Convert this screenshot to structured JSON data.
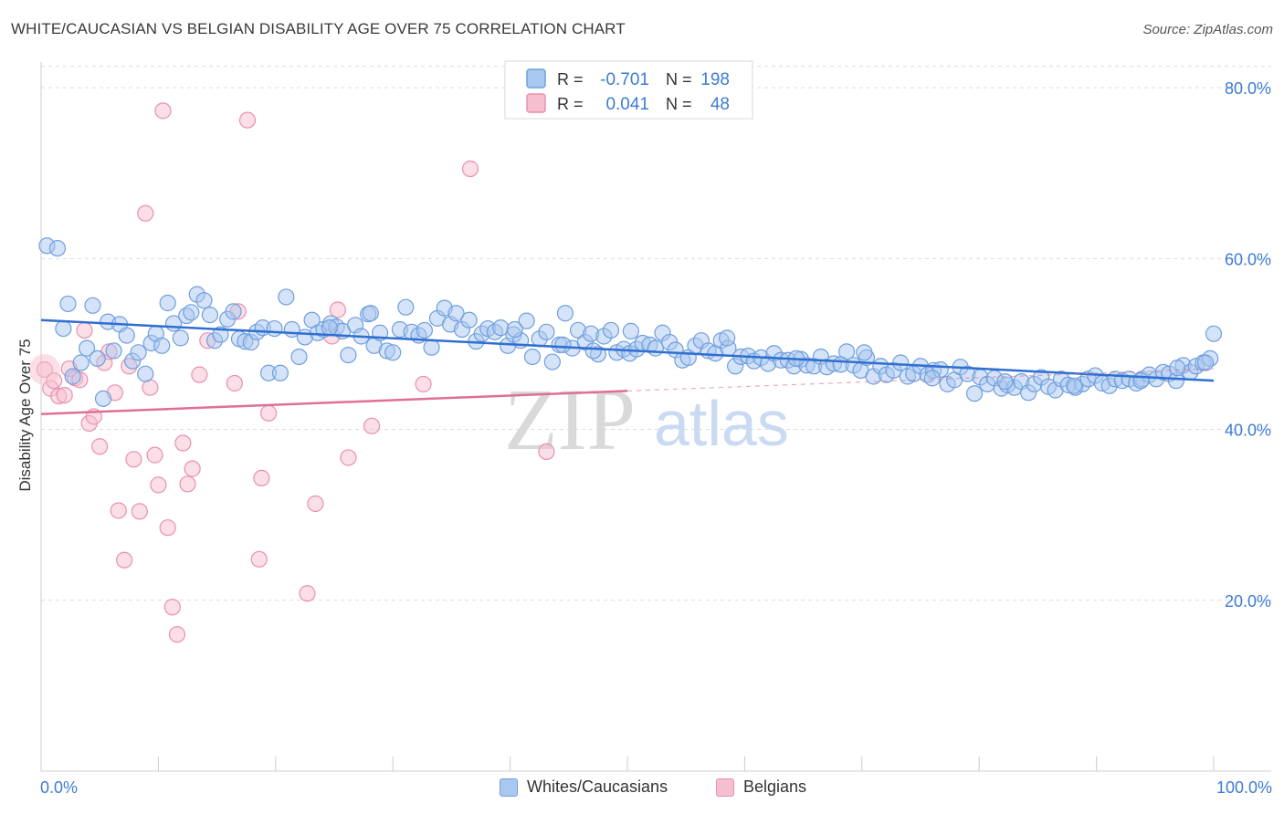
{
  "title": "WHITE/CAUCASIAN VS BELGIAN DISABILITY AGE OVER 75 CORRELATION CHART",
  "source": "Source: ZipAtlas.com",
  "watermark": {
    "zip": "ZIP",
    "atlas": "atlas"
  },
  "colors": {
    "blue_fill": "#a9c8ef",
    "blue_stroke": "#6f9fde",
    "blue_line": "#2e6fd1",
    "pink_fill": "#f6bfd0",
    "pink_stroke": "#ea8fae",
    "pink_line": "#e06e95",
    "tick_label": "#3d7bd6",
    "grid": "#dcdcdc"
  },
  "legend": {
    "rows": [
      {
        "r_label": "R =",
        "r_value": "-0.701",
        "n_label": "N =",
        "n_value": "198",
        "series": "blue"
      },
      {
        "r_label": "R =",
        "r_value": "0.041",
        "n_label": "N =",
        "n_value": "48",
        "series": "pink"
      }
    ]
  },
  "bottom_legend": [
    "Whites/Caucasians",
    "Belgians"
  ],
  "chart_data": {
    "type": "scatter",
    "title": "WHITE/CAUCASIAN VS BELGIAN DISABILITY AGE OVER 75 CORRELATION CHART",
    "xlabel": "",
    "ylabel": "Disability Age Over 75",
    "xlim": [
      0,
      100
    ],
    "ylim": [
      0,
      83
    ],
    "x_tick_labels": [
      "0.0%",
      "100.0%"
    ],
    "y_ticks": [
      20,
      40,
      60,
      80
    ],
    "y_tick_labels": [
      "20.0%",
      "40.0%",
      "60.0%",
      "80.0%"
    ],
    "grid": true,
    "legend_position": "top-center",
    "series": [
      {
        "name": "Whites/Caucasians",
        "color": "#a9c8ef",
        "trend": {
          "x": [
            0,
            100
          ],
          "y": [
            52.8,
            45.7
          ]
        },
        "points": [
          [
            0.5,
            61.5
          ],
          [
            1.4,
            61.2
          ],
          [
            1.9,
            51.8
          ],
          [
            2.3,
            54.7
          ],
          [
            2.7,
            46.2
          ],
          [
            3.4,
            47.8
          ],
          [
            3.9,
            49.5
          ],
          [
            4.4,
            54.5
          ],
          [
            4.8,
            48.3
          ],
          [
            5.3,
            43.6
          ],
          [
            5.7,
            52.6
          ],
          [
            6.2,
            49.2
          ],
          [
            6.7,
            52.3
          ],
          [
            7.3,
            51.0
          ],
          [
            7.8,
            48.0
          ],
          [
            8.3,
            49.0
          ],
          [
            8.9,
            46.5
          ],
          [
            9.4,
            50.1
          ],
          [
            9.8,
            51.2
          ],
          [
            10.3,
            49.8
          ],
          [
            10.8,
            54.8
          ],
          [
            11.3,
            52.4
          ],
          [
            11.9,
            50.7
          ],
          [
            12.4,
            53.3
          ],
          [
            12.8,
            53.7
          ],
          [
            13.3,
            55.8
          ],
          [
            13.9,
            55.1
          ],
          [
            14.4,
            53.4
          ],
          [
            14.8,
            50.4
          ],
          [
            15.3,
            51.1
          ],
          [
            15.9,
            52.9
          ],
          [
            16.4,
            53.8
          ],
          [
            16.9,
            50.6
          ],
          [
            17.4,
            50.3
          ],
          [
            17.9,
            50.2
          ],
          [
            18.4,
            51.4
          ],
          [
            18.9,
            51.9
          ],
          [
            19.4,
            46.6
          ],
          [
            19.9,
            51.8
          ],
          [
            20.4,
            46.6
          ],
          [
            20.9,
            55.5
          ],
          [
            21.4,
            51.7
          ],
          [
            22.0,
            48.5
          ],
          [
            22.5,
            50.8
          ],
          [
            23.1,
            52.8
          ],
          [
            23.6,
            51.3
          ],
          [
            24.1,
            51.7
          ],
          [
            24.7,
            52.4
          ],
          [
            25.2,
            52.0
          ],
          [
            25.7,
            51.5
          ],
          [
            26.2,
            48.7
          ],
          [
            26.8,
            52.2
          ],
          [
            27.3,
            50.9
          ],
          [
            27.9,
            53.5
          ],
          [
            28.4,
            49.8
          ],
          [
            28.9,
            51.3
          ],
          [
            29.5,
            49.2
          ],
          [
            30.0,
            49.0
          ],
          [
            30.6,
            51.7
          ],
          [
            31.1,
            54.3
          ],
          [
            31.6,
            51.4
          ],
          [
            32.2,
            51.0
          ],
          [
            32.7,
            51.6
          ],
          [
            33.3,
            49.6
          ],
          [
            33.8,
            53.0
          ],
          [
            34.4,
            54.2
          ],
          [
            34.9,
            52.3
          ],
          [
            35.4,
            53.6
          ],
          [
            35.9,
            51.7
          ],
          [
            36.5,
            52.8
          ],
          [
            37.1,
            50.3
          ],
          [
            37.6,
            51.2
          ],
          [
            38.1,
            51.8
          ],
          [
            38.7,
            51.4
          ],
          [
            39.2,
            51.9
          ],
          [
            39.8,
            49.8
          ],
          [
            40.3,
            51.1
          ],
          [
            40.9,
            50.4
          ],
          [
            41.4,
            52.7
          ],
          [
            41.9,
            48.5
          ],
          [
            42.5,
            50.6
          ],
          [
            43.1,
            51.4
          ],
          [
            43.6,
            47.9
          ],
          [
            44.2,
            49.9
          ],
          [
            44.7,
            53.6
          ],
          [
            45.3,
            49.5
          ],
          [
            45.8,
            51.6
          ],
          [
            46.4,
            50.2
          ],
          [
            46.9,
            51.2
          ],
          [
            47.5,
            48.8
          ],
          [
            48.0,
            50.9
          ],
          [
            48.6,
            51.6
          ],
          [
            49.1,
            49.0
          ],
          [
            49.7,
            49.4
          ],
          [
            50.2,
            48.9
          ],
          [
            50.8,
            49.4
          ],
          [
            51.3,
            50.1
          ],
          [
            51.9,
            49.9
          ],
          [
            52.4,
            49.5
          ],
          [
            53.0,
            51.3
          ],
          [
            53.6,
            50.2
          ],
          [
            54.1,
            49.3
          ],
          [
            54.7,
            48.1
          ],
          [
            55.2,
            48.4
          ],
          [
            55.8,
            49.8
          ],
          [
            56.3,
            50.4
          ],
          [
            56.9,
            49.2
          ],
          [
            57.5,
            48.9
          ],
          [
            58.0,
            50.4
          ],
          [
            58.6,
            49.5
          ],
          [
            59.2,
            47.4
          ],
          [
            59.7,
            48.5
          ],
          [
            60.3,
            48.6
          ],
          [
            60.8,
            48.0
          ],
          [
            61.4,
            48.4
          ],
          [
            62.0,
            47.7
          ],
          [
            62.5,
            48.9
          ],
          [
            63.1,
            48.1
          ],
          [
            63.7,
            48.1
          ],
          [
            64.2,
            47.4
          ],
          [
            64.8,
            48.2
          ],
          [
            65.3,
            47.5
          ],
          [
            65.9,
            47.4
          ],
          [
            66.5,
            48.5
          ],
          [
            67.0,
            47.3
          ],
          [
            67.6,
            47.7
          ],
          [
            68.2,
            47.6
          ],
          [
            68.7,
            49.1
          ],
          [
            69.3,
            47.5
          ],
          [
            69.9,
            46.9
          ],
          [
            70.4,
            48.4
          ],
          [
            71.0,
            46.2
          ],
          [
            71.6,
            47.4
          ],
          [
            72.1,
            46.4
          ],
          [
            72.7,
            46.9
          ],
          [
            73.3,
            47.8
          ],
          [
            73.9,
            46.2
          ],
          [
            74.4,
            46.5
          ],
          [
            75.0,
            47.4
          ],
          [
            75.6,
            46.4
          ],
          [
            76.1,
            46.9
          ],
          [
            76.7,
            47.0
          ],
          [
            77.3,
            45.3
          ],
          [
            77.9,
            45.8
          ],
          [
            78.4,
            47.3
          ],
          [
            79.0,
            46.5
          ],
          [
            79.6,
            44.2
          ],
          [
            80.1,
            46.1
          ],
          [
            80.7,
            45.3
          ],
          [
            81.3,
            46.0
          ],
          [
            81.9,
            44.8
          ],
          [
            82.4,
            45.2
          ],
          [
            83.0,
            44.9
          ],
          [
            83.6,
            45.6
          ],
          [
            84.2,
            44.3
          ],
          [
            84.7,
            45.3
          ],
          [
            85.3,
            46.1
          ],
          [
            85.9,
            45.0
          ],
          [
            86.5,
            44.6
          ],
          [
            87.0,
            45.9
          ],
          [
            87.6,
            45.2
          ],
          [
            88.2,
            44.9
          ],
          [
            88.8,
            45.3
          ],
          [
            89.3,
            45.9
          ],
          [
            89.9,
            46.3
          ],
          [
            90.5,
            45.4
          ],
          [
            91.1,
            45.1
          ],
          [
            91.6,
            45.9
          ],
          [
            92.2,
            45.7
          ],
          [
            92.8,
            45.9
          ],
          [
            93.4,
            45.4
          ],
          [
            93.9,
            45.9
          ],
          [
            94.5,
            46.4
          ],
          [
            95.1,
            45.9
          ],
          [
            95.7,
            46.7
          ],
          [
            96.2,
            46.5
          ],
          [
            96.8,
            45.7
          ],
          [
            97.4,
            47.5
          ],
          [
            98.0,
            46.7
          ],
          [
            98.5,
            47.4
          ],
          [
            99.1,
            47.8
          ],
          [
            99.7,
            48.3
          ],
          [
            100.0,
            51.2
          ],
          [
            28.1,
            53.6
          ],
          [
            24.6,
            51.9
          ],
          [
            40.4,
            51.7
          ],
          [
            44.5,
            49.9
          ],
          [
            50.3,
            51.5
          ],
          [
            58.5,
            50.7
          ],
          [
            64.4,
            48.3
          ],
          [
            70.2,
            49.0
          ],
          [
            76.0,
            46.0
          ],
          [
            82.2,
            45.6
          ],
          [
            88.1,
            45.1
          ],
          [
            93.8,
            45.7
          ],
          [
            96.9,
            47.2
          ],
          [
            47.1,
            49.2
          ],
          [
            99.3,
            47.8
          ]
        ]
      },
      {
        "name": "Belgians",
        "color": "#f6bfd0",
        "trend": {
          "x": [
            0,
            50
          ],
          "y": [
            41.8,
            44.5
          ]
        },
        "trend_dashed": {
          "x": [
            50,
            100
          ],
          "y": [
            44.5,
            47.1
          ]
        },
        "points": [
          [
            0.3,
            47.0
          ],
          [
            0.8,
            44.8
          ],
          [
            1.1,
            45.7
          ],
          [
            1.5,
            43.9
          ],
          [
            2.0,
            44.0
          ],
          [
            2.4,
            47.1
          ],
          [
            2.9,
            46.0
          ],
          [
            3.3,
            45.8
          ],
          [
            3.7,
            51.6
          ],
          [
            4.1,
            40.7
          ],
          [
            4.5,
            41.5
          ],
          [
            5.0,
            38.0
          ],
          [
            5.4,
            47.8
          ],
          [
            5.8,
            49.1
          ],
          [
            6.3,
            44.3
          ],
          [
            6.6,
            30.5
          ],
          [
            7.1,
            24.7
          ],
          [
            7.5,
            47.4
          ],
          [
            7.9,
            36.5
          ],
          [
            8.4,
            30.4
          ],
          [
            8.9,
            65.3
          ],
          [
            9.3,
            44.9
          ],
          [
            9.7,
            37.0
          ],
          [
            10.0,
            33.5
          ],
          [
            10.4,
            77.3
          ],
          [
            10.8,
            28.5
          ],
          [
            11.2,
            19.2
          ],
          [
            11.6,
            16.0
          ],
          [
            12.1,
            38.4
          ],
          [
            12.5,
            33.6
          ],
          [
            12.9,
            35.4
          ],
          [
            13.5,
            46.4
          ],
          [
            14.2,
            50.4
          ],
          [
            16.5,
            45.4
          ],
          [
            16.8,
            53.8
          ],
          [
            17.6,
            76.2
          ],
          [
            18.8,
            34.3
          ],
          [
            19.4,
            41.9
          ],
          [
            18.6,
            24.8
          ],
          [
            22.7,
            20.8
          ],
          [
            23.4,
            31.3
          ],
          [
            24.8,
            50.9
          ],
          [
            25.3,
            54.0
          ],
          [
            26.2,
            36.7
          ],
          [
            28.2,
            40.4
          ],
          [
            32.6,
            45.3
          ],
          [
            36.6,
            70.5
          ],
          [
            43.1,
            37.4
          ]
        ]
      }
    ]
  }
}
